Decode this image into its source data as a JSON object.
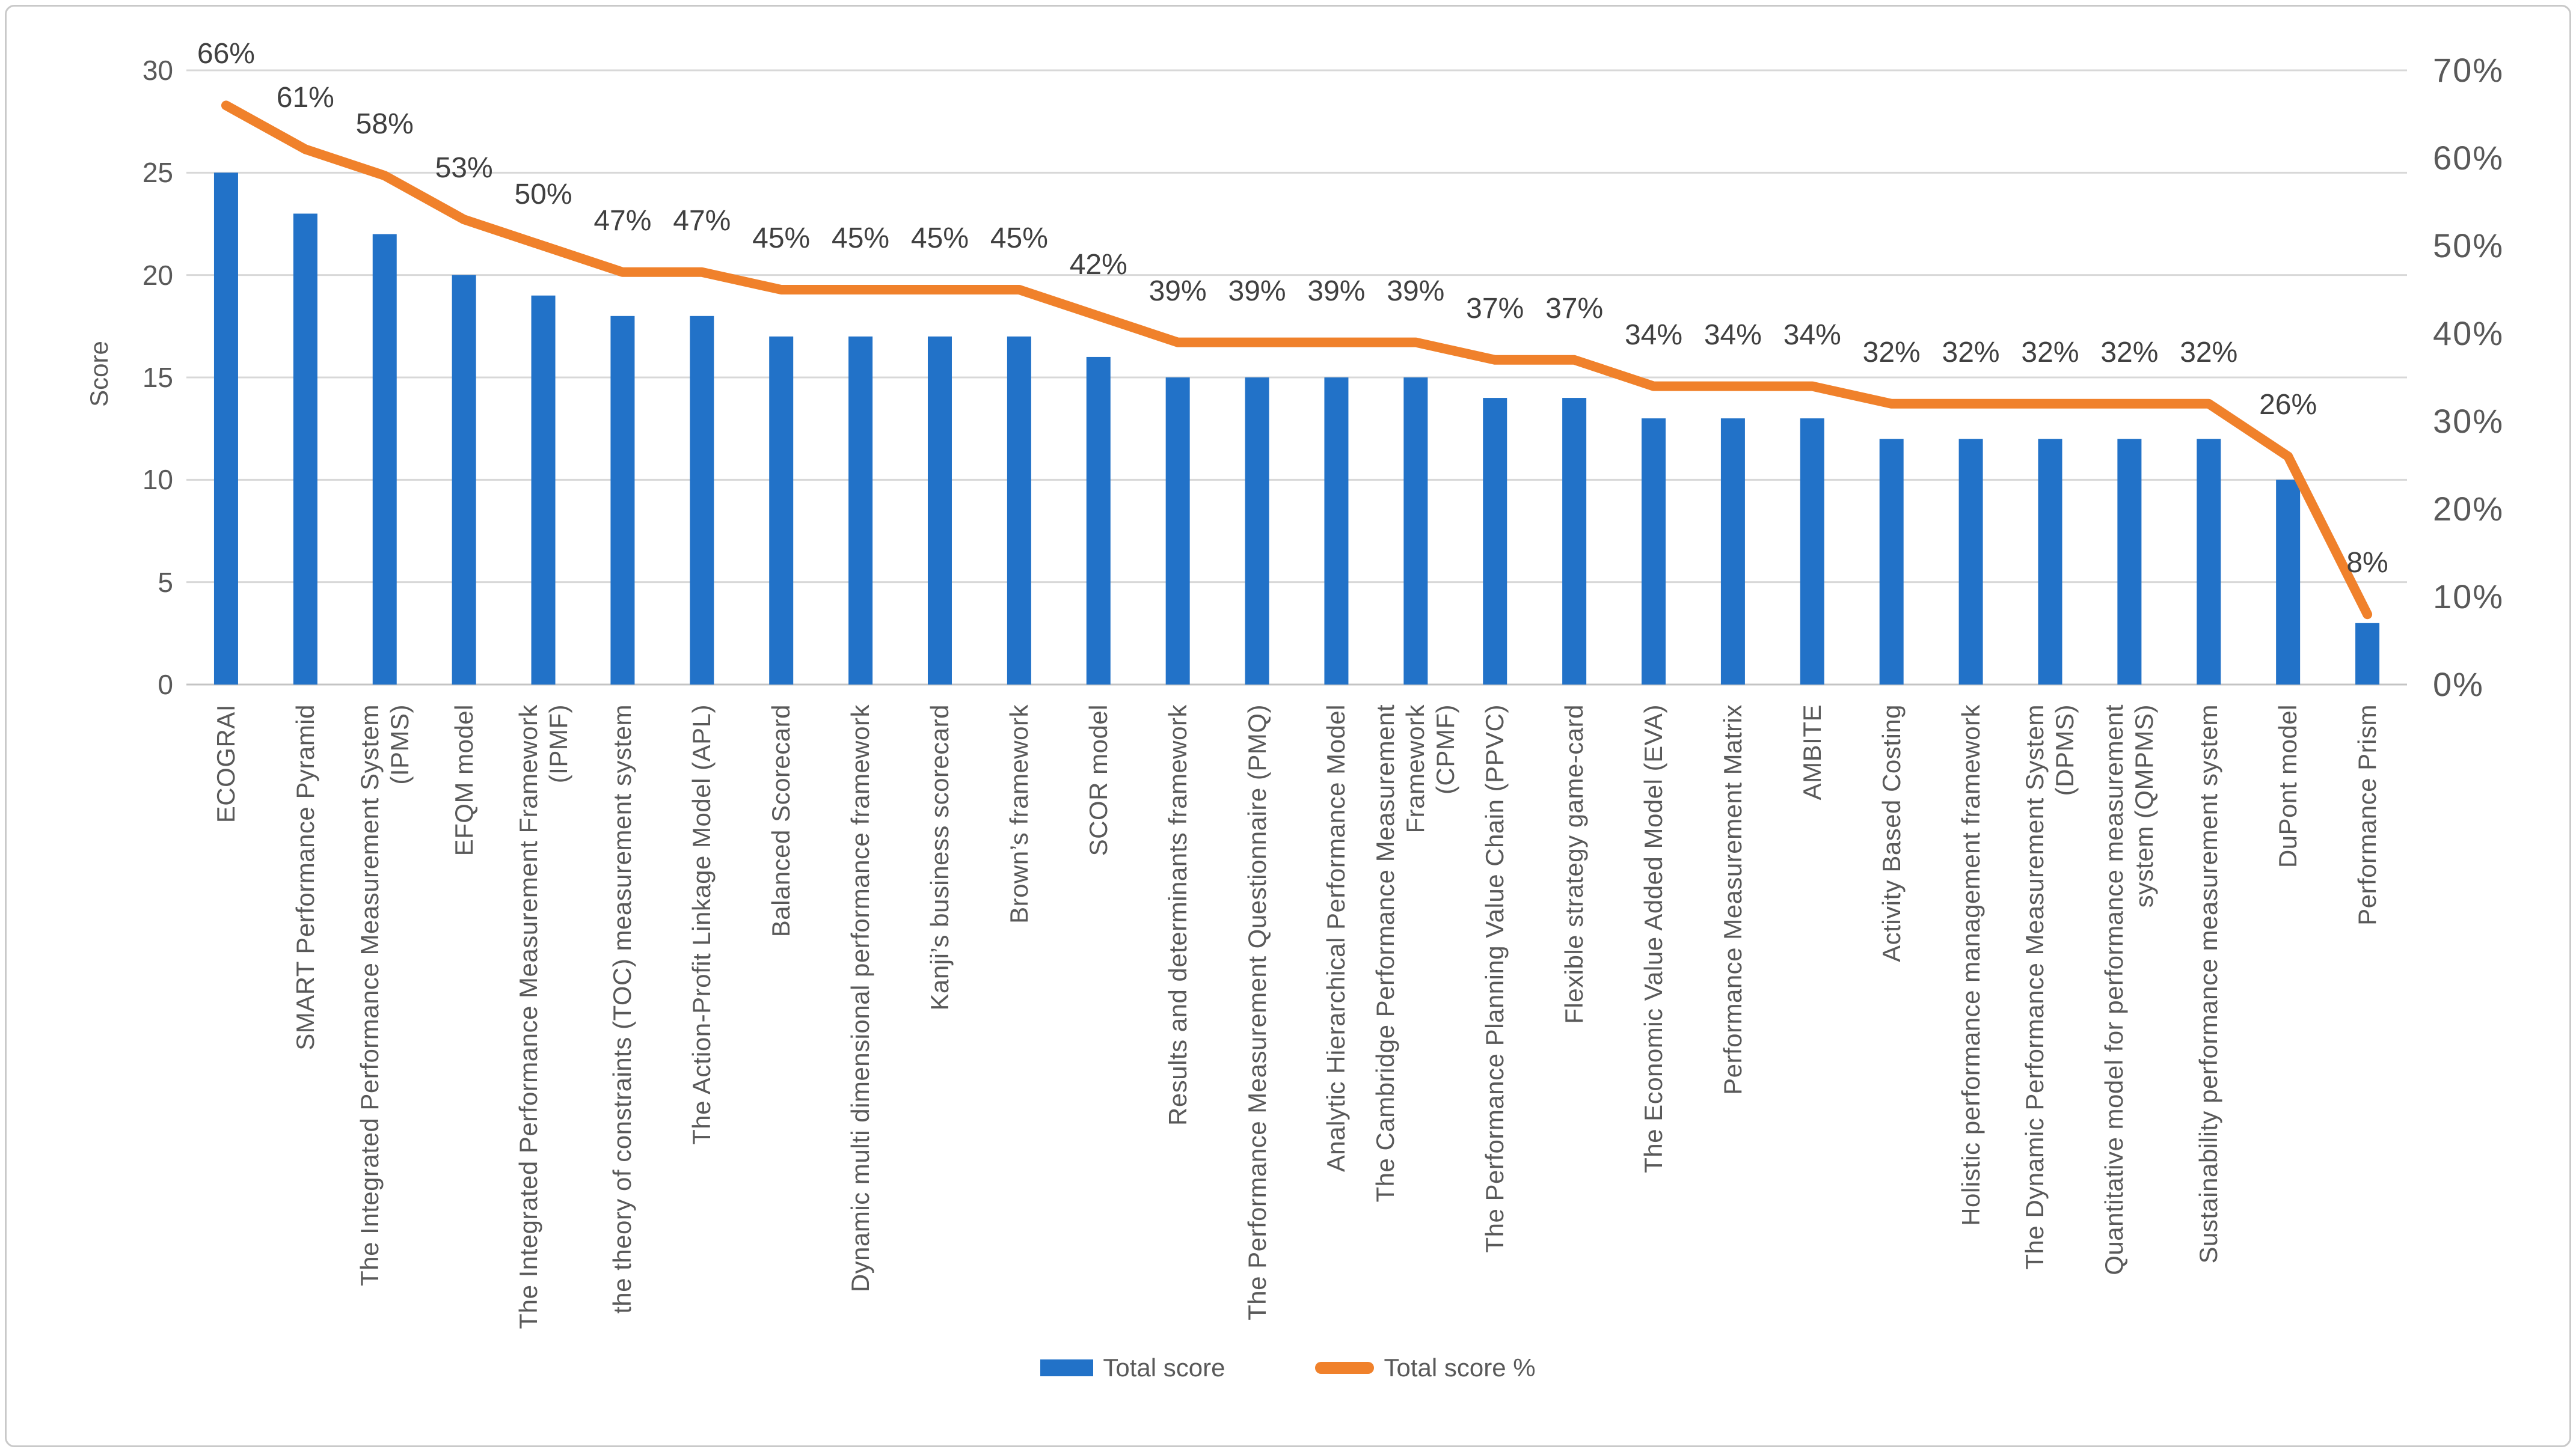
{
  "chart_data": {
    "type": "combo",
    "title": "",
    "categories": [
      "ECOGRAI",
      "SMART Performance Pyramid",
      "The Integrated Performance Measurement System\n(IPMS)",
      "EFQM model",
      "The Integrated Performance Measurement Framework\n(IPMF)",
      "the theory of constraints (TOC) measurement system",
      "The Action-Profit Linkage Model (APL)",
      "Balanced Scorecard",
      "Dynamic multi dimensional performance framework",
      "Kanji’s business scorecard",
      "Brown’s framework",
      "SCOR model",
      "Results and determinants framework",
      "The Performance Measurement Questionnaire (PMQ)",
      "Analytic Hierarchical Performance Model",
      "The Cambridge Performance Measurement Framework\n(CPMF)",
      "The Performance Planning Value Chain (PPVC)",
      "Flexible strategy game-card",
      "The Economic Value Added Model (EVA)",
      "Performance Measurement Matrix",
      "AMBITE",
      "Activity Based Costing",
      "Holistic performance management framework",
      "The Dynamic Performance Measurement System\n(DPMS)",
      "Quantitative model for performance measurement\nsystem (QMPMS)",
      "Sustainability performance measurement system",
      "DuPont model",
      "Performance Prism"
    ],
    "series": [
      {
        "name": "Total score",
        "type": "bar",
        "axis": "left",
        "color": "#2272c8",
        "values": [
          25,
          23,
          22,
          20,
          19,
          18,
          18,
          17,
          17,
          17,
          17,
          16,
          15,
          15,
          15,
          15,
          14,
          14,
          13,
          13,
          13,
          12,
          12,
          12,
          12,
          12,
          10,
          3
        ]
      },
      {
        "name": "Total score %",
        "type": "line",
        "axis": "right",
        "color": "#f0812b",
        "values_pct": [
          66,
          61,
          58,
          53,
          50,
          47,
          47,
          45,
          45,
          45,
          45,
          42,
          39,
          39,
          39,
          39,
          37,
          37,
          34,
          34,
          34,
          32,
          32,
          32,
          32,
          32,
          26,
          8
        ],
        "data_labels": [
          "66%",
          "61%",
          "58%",
          "53%",
          "50%",
          "47%",
          "47%",
          "45%",
          "45%",
          "45%",
          "45%",
          "42%",
          "39%",
          "39%",
          "39%",
          "39%",
          "37%",
          "37%",
          "34%",
          "34%",
          "34%",
          "32%",
          "32%",
          "32%",
          "32%",
          "32%",
          "26%",
          "8%"
        ]
      }
    ],
    "left_axis": {
      "title": "Score",
      "min": 0,
      "max": 30,
      "step": 5,
      "ticks": [
        "30",
        "25",
        "20",
        "15",
        "10",
        "5",
        "0"
      ]
    },
    "right_axis": {
      "min": 0,
      "max": 70,
      "step": 10,
      "ticks": [
        "70%",
        "60%",
        "50%",
        "40%",
        "30%",
        "20%",
        "10%",
        "0%"
      ]
    },
    "grid": true,
    "legend_position": "bottom"
  },
  "legend": {
    "items": [
      {
        "label": "Total score",
        "color": "#2272c8",
        "shape": "rect"
      },
      {
        "label": "Total score %",
        "color": "#f0812b",
        "shape": "line"
      }
    ]
  },
  "colors": {
    "bar_blue": "#2272c8",
    "line_orange": "#f0812b",
    "gridline": "#d8d8d8",
    "axis_line": "#c4c4c4",
    "axis_text": "#595959",
    "data_label_text": "#404040",
    "frame_border": "#c9c9c9"
  }
}
